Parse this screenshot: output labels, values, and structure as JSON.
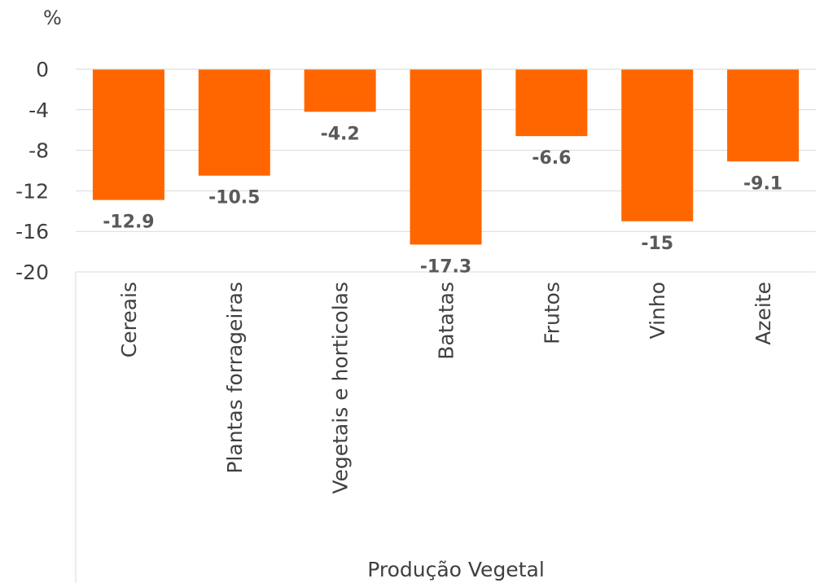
{
  "chart_data": {
    "type": "bar",
    "ylabel": "%",
    "xlabel": "Produção Vegetal",
    "categories": [
      "Cereais",
      "Plantas forrageiras",
      "Vegetais e horticolas",
      "Batatas",
      "Frutos",
      "Vinho",
      "Azeite"
    ],
    "values": [
      -12.9,
      -10.5,
      -4.2,
      -17.3,
      -6.6,
      -15,
      -9.1
    ],
    "data_labels": [
      "-12.9",
      "-10.5",
      "-4.2",
      "-17.3",
      "-6.6",
      "-15",
      "-9.1"
    ],
    "ylim": [
      -20,
      0
    ],
    "yticks": [
      0,
      -4,
      -8,
      -12,
      -16,
      -20
    ],
    "ytick_labels": [
      "0",
      "-4",
      "-8",
      "-12",
      "-16",
      "-20"
    ],
    "grid": true,
    "legend": "none",
    "colors": {
      "bar": "#ff6600",
      "grid": "#d9d9d9",
      "axis": "#d9d9d9",
      "text": "#404040",
      "data_label": "#595959"
    }
  }
}
